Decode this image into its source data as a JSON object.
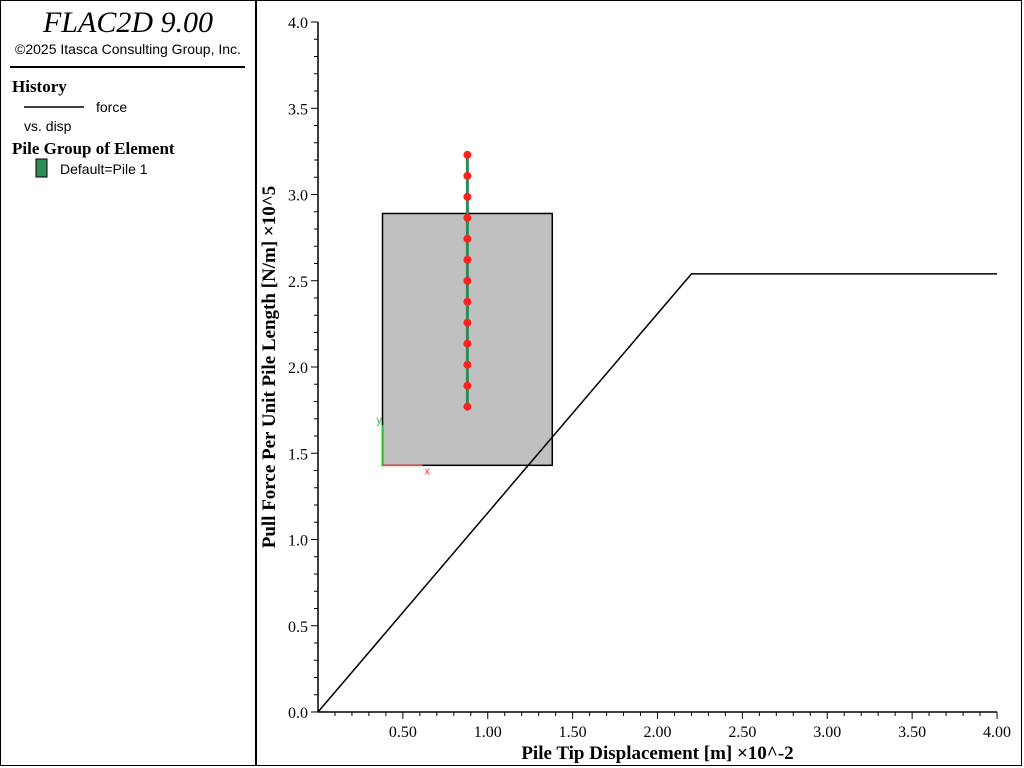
{
  "legend_panel": {
    "app_title": "FLAC2D 9.00",
    "copyright": "©2025 Itasca Consulting Group, Inc.",
    "history_heading": "History",
    "history_entry_name": "force",
    "history_entry_sub": "vs. disp",
    "pile_group_heading": "Pile Group of Element",
    "pile_group_entry": "Default=Pile 1",
    "pile_group_color": "#2e8b57"
  },
  "chart_data": {
    "type": "line",
    "xlabel": "Pile Tip Displacement [m] ×10^-2",
    "ylabel": "Pull Force Per Unit Pile Length [N/m] ×10^5",
    "xlim": [
      0,
      4.0
    ],
    "ylim": [
      0,
      4.0
    ],
    "x_ticks": [
      "0.50",
      "1.00",
      "1.50",
      "2.00",
      "2.50",
      "3.00",
      "3.50",
      "4.00"
    ],
    "y_ticks": [
      "0.0",
      "0.5",
      "1.0",
      "1.5",
      "2.0",
      "2.5",
      "3.0",
      "3.5",
      "4.0"
    ],
    "grid": false,
    "legend": "left-panel",
    "series": [
      {
        "name": "force",
        "color": "#000000",
        "x": [
          0.0,
          2.2,
          4.0
        ],
        "y": [
          0.0,
          2.54,
          2.54
        ]
      }
    ],
    "inset": {
      "description_colors": {
        "fill": "#c0c0c0",
        "pile": "#2e8b57",
        "nodes": "#ff2020",
        "axis_x": "#ff4040",
        "axis_y": "#30c030"
      },
      "x_range": [
        0.38,
        1.38
      ],
      "y_range": [
        1.43,
        2.89
      ],
      "pile_x": 0.88,
      "pile_y_top": 3.23,
      "pile_y_bottom": 1.77,
      "node_count": 13,
      "axis_x_label": "x",
      "axis_y_label": "y"
    }
  }
}
